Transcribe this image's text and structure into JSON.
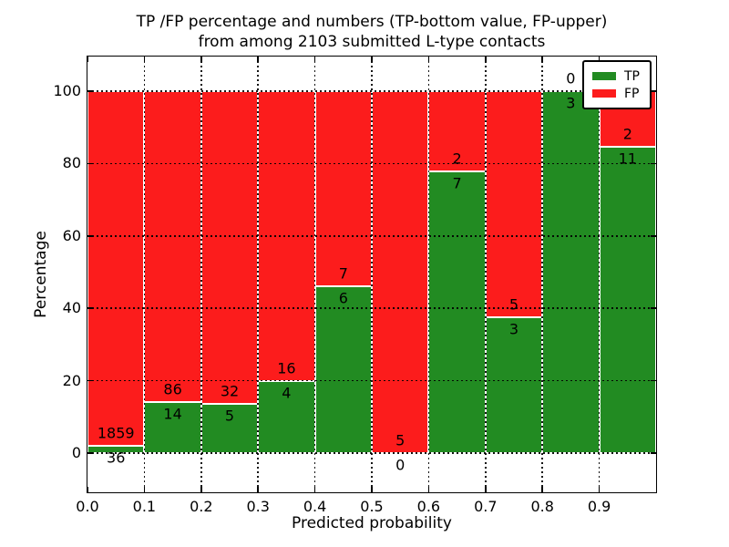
{
  "title": {
    "line1": "TP /FP percentage and numbers (TP-bottom value, FP-upper)",
    "line2": "from among 2103 submitted L-type contacts"
  },
  "chart_data": {
    "type": "bar",
    "stacked": true,
    "title": "TP /FP percentage and numbers (TP-bottom value, FP-upper)\nfrom among 2103 submitted L-type contacts",
    "xlabel": "Predicted probability",
    "ylabel": "Percentage",
    "total_contacts": 2103,
    "bin_edges": [
      0.0,
      0.1,
      0.2,
      0.3,
      0.4,
      0.5,
      0.6,
      0.7,
      0.8,
      0.9,
      1.0
    ],
    "x_tick_values": [
      0.0,
      0.1,
      0.2,
      0.3,
      0.4,
      0.5,
      0.6,
      0.7,
      0.8,
      0.9
    ],
    "x_tick_labels": [
      "0.0",
      "0.1",
      "0.2",
      "0.3",
      "0.4",
      "0.5",
      "0.6",
      "0.7",
      "0.8",
      "0.9"
    ],
    "y_ticks": [
      0,
      20,
      40,
      60,
      80,
      100
    ],
    "xlim": [
      0.0,
      1.0
    ],
    "ylim": [
      -10.83,
      109.57
    ],
    "grid": "dotted",
    "grid_color": "#000000",
    "bar_edge_color": "#ffffff",
    "series": [
      {
        "name": "TP",
        "color": "#228b22",
        "counts": [
          36,
          14,
          5,
          4,
          6,
          0,
          7,
          3,
          3,
          11
        ],
        "percentages": [
          1.9,
          14.0,
          13.51,
          20.0,
          46.15,
          0.0,
          77.78,
          37.5,
          100.0,
          84.62
        ]
      },
      {
        "name": "FP",
        "color": "#fc1c1c",
        "counts": [
          1859,
          86,
          32,
          16,
          7,
          5,
          2,
          5,
          0,
          2
        ],
        "percentages": [
          98.1,
          86.0,
          86.49,
          80.0,
          53.85,
          100.0,
          22.22,
          62.5,
          0.0,
          15.38
        ]
      }
    ],
    "legend": {
      "position": "upper right",
      "entries": [
        {
          "label": "TP"
        },
        {
          "label": "FP"
        }
      ]
    }
  }
}
